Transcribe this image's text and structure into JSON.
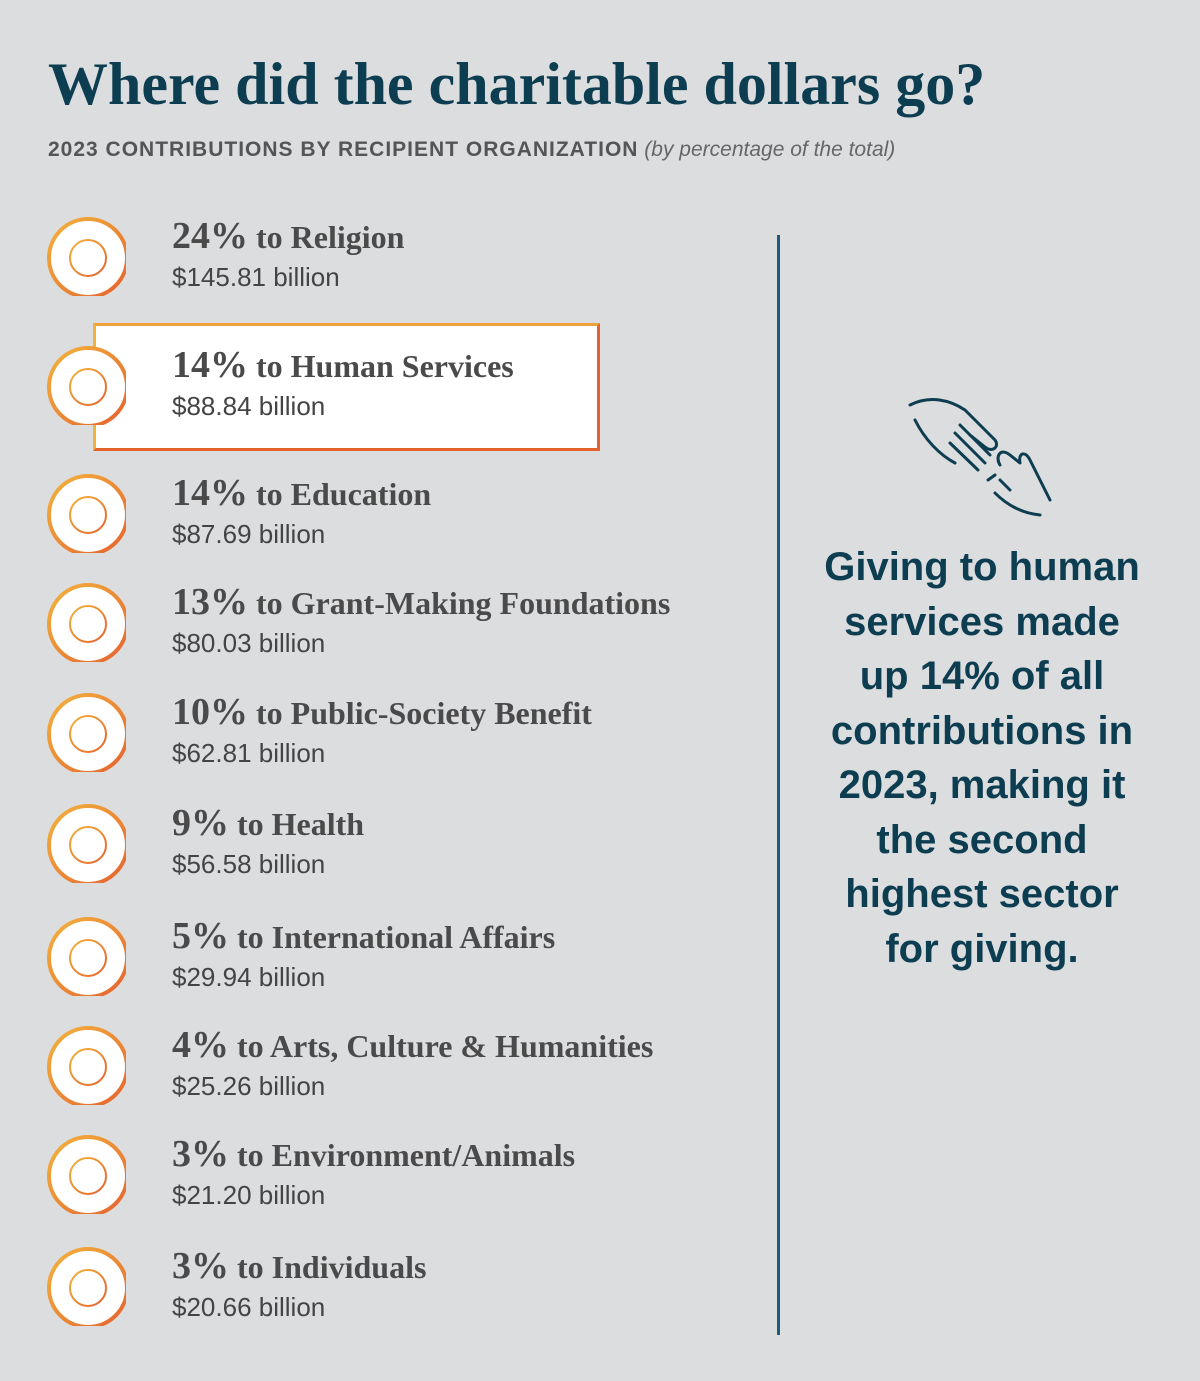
{
  "header": {
    "title": "Where did the charitable dollars go?",
    "subtitle": "2023 CONTRIBUTIONS BY RECIPIENT ORGANIZATION",
    "note": "(by percentage of the total)"
  },
  "items": [
    {
      "percent": "24%",
      "label": "to Religion",
      "amount": "$145.81 billion"
    },
    {
      "percent": "14%",
      "label": "to Human Services",
      "amount": "$88.84 billion"
    },
    {
      "percent": "14%",
      "label": "to Education",
      "amount": "$87.69 billion"
    },
    {
      "percent": "13%",
      "label": "to Grant-Making Foundations",
      "amount": "$80.03 billion"
    },
    {
      "percent": "10%",
      "label": "to Public-Society Benefit",
      "amount": "$62.81 billion"
    },
    {
      "percent": "9%",
      "label": "to Health",
      "amount": "$56.58 billion"
    },
    {
      "percent": "5%",
      "label": "to International Affairs",
      "amount": "$29.94 billion"
    },
    {
      "percent": "4%",
      "label": "to Arts, Culture & Humanities",
      "amount": "$25.26 billion"
    },
    {
      "percent": "3%",
      "label": "to Environment/Animals",
      "amount": "$21.20 billion"
    },
    {
      "percent": "3%",
      "label": "to Individuals",
      "amount": "$20.66 billion"
    }
  ],
  "callout": "Giving to human services made up 14% of all contributions in 2023, making it the second highest sector for giving."
}
